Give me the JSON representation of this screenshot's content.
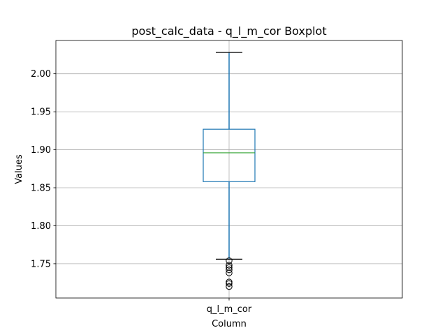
{
  "chart_data": {
    "type": "boxplot",
    "title": "post_calc_data - q_l_m_cor Boxplot",
    "xlabel": "Column",
    "ylabel": "Values",
    "categories": [
      "q_l_m_cor"
    ],
    "ylim": [
      1.7049,
      2.0438
    ],
    "yticks": [
      1.75,
      1.8,
      1.85,
      1.9,
      1.95,
      2.0
    ],
    "ytick_labels": [
      "1.75",
      "1.80",
      "1.85",
      "1.90",
      "1.95",
      "2.00"
    ],
    "grid": true,
    "boxes": [
      {
        "name": "q_l_m_cor",
        "whisker_low": 1.756,
        "q1": 1.858,
        "median": 1.896,
        "q3": 1.927,
        "whisker_high": 2.028,
        "outliers": [
          1.754,
          1.748,
          1.745,
          1.742,
          1.738,
          1.726,
          1.724,
          1.72
        ]
      }
    ],
    "colors": {
      "box": "#1f77b4",
      "median": "#2ca02c",
      "cap": "#000000",
      "grid": "#b0b0b0",
      "axes": "#000000"
    }
  }
}
